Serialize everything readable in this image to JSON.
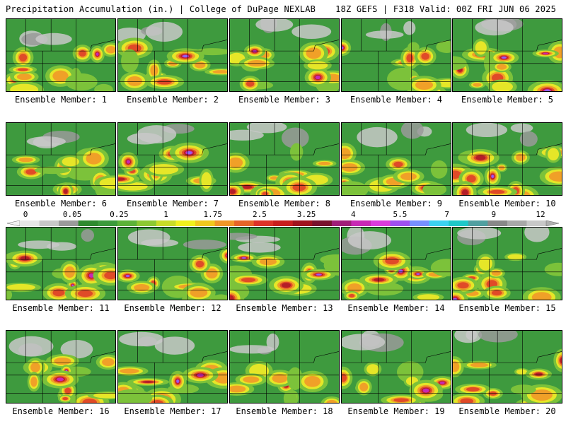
{
  "header": {
    "title": "Precipitation Accumulation (in.) | College of DuPage NEXLAB",
    "run_info": "18Z GEFS | F318 Valid: 00Z FRI JUN 06 2025"
  },
  "member_caption_prefix": "Ensemble Member: ",
  "members": [
    1,
    2,
    3,
    4,
    5,
    6,
    7,
    8,
    9,
    10,
    11,
    12,
    13,
    14,
    15,
    16,
    17,
    18,
    19,
    20
  ],
  "colorbar": {
    "labels": [
      "0",
      "0.05",
      "0.25",
      "1",
      "1.75",
      "2.5",
      "3.25",
      "4",
      "5.5",
      "7",
      "9",
      "12"
    ],
    "colors": [
      "#e6e6e6",
      "#c8c8c8",
      "#9a9a9a",
      "#2f8a2f",
      "#3c9a3c",
      "#5cb238",
      "#8cc832",
      "#c8dc28",
      "#f0f01e",
      "#f0c81e",
      "#f09628",
      "#e66428",
      "#dc3228",
      "#c81e1e",
      "#a0141e",
      "#78142d",
      "#a01e78",
      "#c828b4",
      "#dc3cdc",
      "#a050f0",
      "#7890ff",
      "#3cd2f0",
      "#1ec8c8",
      "#50a0a0",
      "#888888",
      "#a8a8a8",
      "#c8c8c8"
    ]
  }
}
